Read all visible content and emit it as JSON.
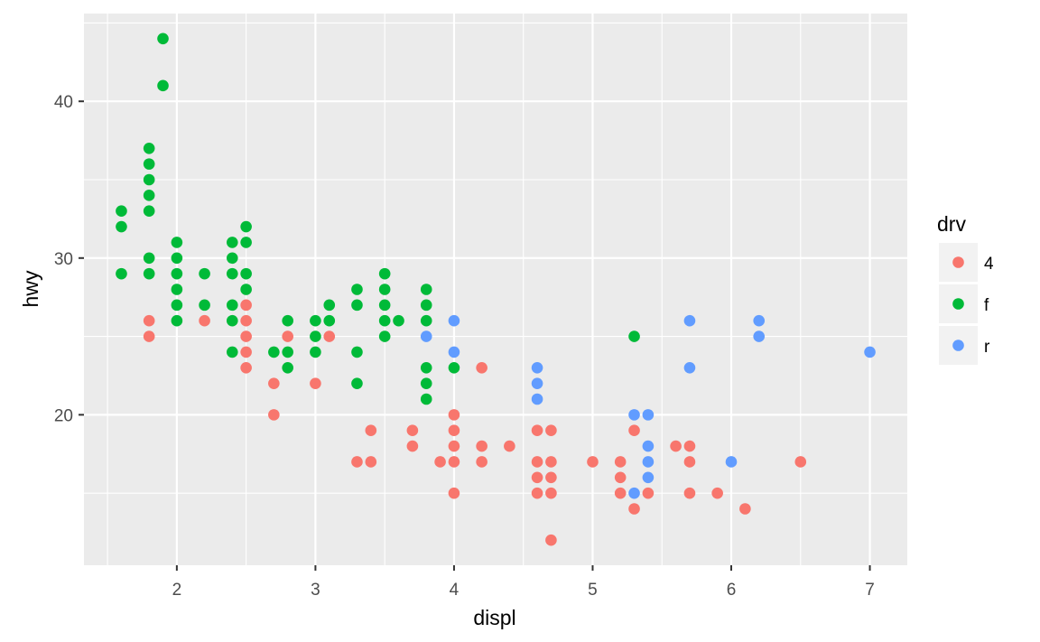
{
  "chart_data": {
    "type": "scatter",
    "xlabel": "displ",
    "ylabel": "hwy",
    "xlim": [
      1.33,
      7.27
    ],
    "ylim": [
      10.4,
      45.6
    ],
    "x_ticks": [
      2,
      3,
      4,
      5,
      6,
      7
    ],
    "y_ticks": [
      20,
      30,
      40
    ],
    "grid": true,
    "legend": {
      "title": "drv",
      "position": "right"
    },
    "series": [
      {
        "name": "4",
        "color": "#F8766D",
        "points": [
          [
            1.8,
            26
          ],
          [
            1.8,
            25
          ],
          [
            2.2,
            26
          ],
          [
            2.5,
            27
          ],
          [
            2.5,
            26
          ],
          [
            2.5,
            25
          ],
          [
            2.5,
            24
          ],
          [
            2.5,
            23
          ],
          [
            2.7,
            22
          ],
          [
            2.7,
            20
          ],
          [
            2.8,
            25
          ],
          [
            3.0,
            22
          ],
          [
            3.1,
            25
          ],
          [
            3.3,
            17
          ],
          [
            3.4,
            19
          ],
          [
            3.4,
            17
          ],
          [
            3.7,
            19
          ],
          [
            3.7,
            18
          ],
          [
            3.9,
            17
          ],
          [
            4.0,
            20
          ],
          [
            4.0,
            19
          ],
          [
            4.0,
            18
          ],
          [
            4.0,
            17
          ],
          [
            4.0,
            15
          ],
          [
            4.2,
            23
          ],
          [
            4.2,
            18
          ],
          [
            4.2,
            17
          ],
          [
            4.4,
            18
          ],
          [
            4.6,
            19
          ],
          [
            4.6,
            17
          ],
          [
            4.6,
            16
          ],
          [
            4.6,
            15
          ],
          [
            4.7,
            19
          ],
          [
            4.7,
            17
          ],
          [
            4.7,
            16
          ],
          [
            4.7,
            15
          ],
          [
            4.7,
            12
          ],
          [
            5.0,
            17
          ],
          [
            5.2,
            17
          ],
          [
            5.2,
            16
          ],
          [
            5.2,
            15
          ],
          [
            5.3,
            19
          ],
          [
            5.3,
            14
          ],
          [
            5.4,
            15
          ],
          [
            5.6,
            18
          ],
          [
            5.7,
            18
          ],
          [
            5.7,
            17
          ],
          [
            5.7,
            15
          ],
          [
            5.9,
            15
          ],
          [
            6.1,
            14
          ],
          [
            6.5,
            17
          ]
        ]
      },
      {
        "name": "f",
        "color": "#00BA38",
        "points": [
          [
            1.6,
            33
          ],
          [
            1.6,
            32
          ],
          [
            1.6,
            29
          ],
          [
            1.8,
            37
          ],
          [
            1.8,
            36
          ],
          [
            1.8,
            35
          ],
          [
            1.8,
            34
          ],
          [
            1.8,
            33
          ],
          [
            1.8,
            30
          ],
          [
            1.8,
            29
          ],
          [
            1.9,
            44
          ],
          [
            1.9,
            41
          ],
          [
            2.0,
            31
          ],
          [
            2.0,
            30
          ],
          [
            2.0,
            29
          ],
          [
            2.0,
            28
          ],
          [
            2.0,
            27
          ],
          [
            2.0,
            26
          ],
          [
            2.2,
            29
          ],
          [
            2.2,
            27
          ],
          [
            2.4,
            31
          ],
          [
            2.4,
            30
          ],
          [
            2.4,
            29
          ],
          [
            2.4,
            27
          ],
          [
            2.4,
            26
          ],
          [
            2.4,
            24
          ],
          [
            2.5,
            32
          ],
          [
            2.5,
            31
          ],
          [
            2.5,
            29
          ],
          [
            2.5,
            28
          ],
          [
            2.7,
            24
          ],
          [
            2.8,
            26
          ],
          [
            2.8,
            24
          ],
          [
            2.8,
            23
          ],
          [
            3.0,
            26
          ],
          [
            3.0,
            25
          ],
          [
            3.0,
            24
          ],
          [
            3.1,
            27
          ],
          [
            3.1,
            26
          ],
          [
            3.3,
            28
          ],
          [
            3.3,
            27
          ],
          [
            3.3,
            24
          ],
          [
            3.3,
            22
          ],
          [
            3.5,
            29
          ],
          [
            3.5,
            28
          ],
          [
            3.5,
            27
          ],
          [
            3.5,
            26
          ],
          [
            3.5,
            25
          ],
          [
            3.6,
            26
          ],
          [
            3.8,
            28
          ],
          [
            3.8,
            27
          ],
          [
            3.8,
            26
          ],
          [
            3.8,
            23
          ],
          [
            3.8,
            22
          ],
          [
            3.8,
            21
          ],
          [
            4.0,
            23
          ],
          [
            5.3,
            25
          ]
        ]
      },
      {
        "name": "r",
        "color": "#619CFF",
        "points": [
          [
            3.8,
            25
          ],
          [
            4.0,
            26
          ],
          [
            4.0,
            24
          ],
          [
            4.6,
            23
          ],
          [
            4.6,
            22
          ],
          [
            4.6,
            21
          ],
          [
            5.3,
            20
          ],
          [
            5.3,
            15
          ],
          [
            5.4,
            20
          ],
          [
            5.4,
            18
          ],
          [
            5.4,
            17
          ],
          [
            5.4,
            16
          ],
          [
            5.7,
            26
          ],
          [
            5.7,
            23
          ],
          [
            6.0,
            17
          ],
          [
            6.2,
            26
          ],
          [
            6.2,
            25
          ],
          [
            7.0,
            24
          ]
        ]
      }
    ]
  }
}
